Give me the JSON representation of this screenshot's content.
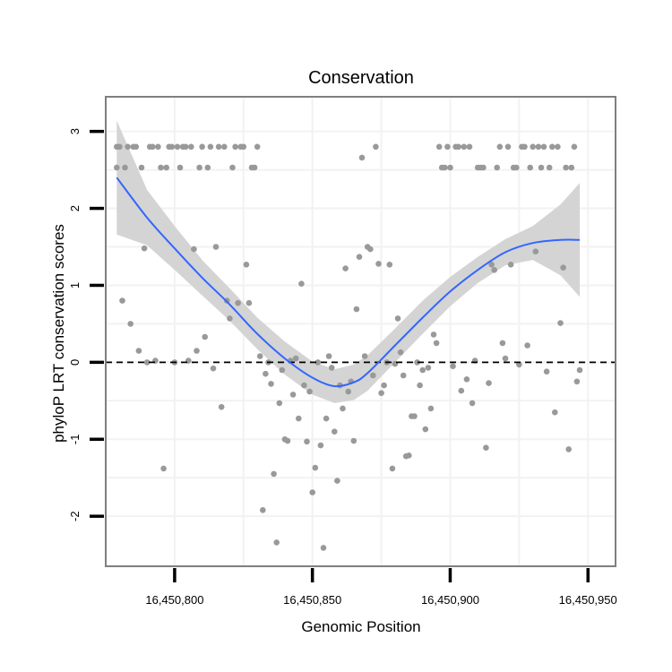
{
  "chart_data": {
    "type": "scatter",
    "title": "Conservation",
    "xlabel": "Genomic Position",
    "ylabel": "phyloP LRT conservation scores",
    "xlim": [
      16450775,
      16450960
    ],
    "ylim": [
      -2.65,
      3.45
    ],
    "xticks": [
      16450800,
      16450850,
      16450900,
      16450950
    ],
    "xtick_labels": [
      "16,450,800",
      "16,450,850",
      "16,450,900",
      "16,450,950"
    ],
    "yticks": [
      -2,
      -1,
      0,
      1,
      2,
      3
    ],
    "ytick_labels": [
      "-2",
      "-1",
      "0",
      "1",
      "2",
      "3"
    ],
    "reference_line": {
      "y": 0,
      "style": "dashed"
    },
    "grid": true,
    "colors": {
      "points": "#999999",
      "smooth_line": "#3366ff",
      "confidence_band": "#d4d4d4",
      "panel_border": "#7f7f7f",
      "grid": "#f2f2f2"
    },
    "points": [
      [
        16450779,
        2.53
      ],
      [
        16450779,
        2.8
      ],
      [
        16450780,
        2.8
      ],
      [
        16450781,
        0.8
      ],
      [
        16450782,
        2.53
      ],
      [
        16450783,
        2.8
      ],
      [
        16450784,
        0.5
      ],
      [
        16450785,
        2.8
      ],
      [
        16450786,
        2.8
      ],
      [
        16450787,
        0.15
      ],
      [
        16450788,
        2.53
      ],
      [
        16450789,
        1.48
      ],
      [
        16450790,
        0.0
      ],
      [
        16450791,
        2.8
      ],
      [
        16450792,
        2.8
      ],
      [
        16450793,
        0.02
      ],
      [
        16450794,
        2.8
      ],
      [
        16450795,
        2.53
      ],
      [
        16450796,
        -1.38
      ],
      [
        16450797,
        2.53
      ],
      [
        16450798,
        2.8
      ],
      [
        16450799,
        2.8
      ],
      [
        16450800,
        0.0
      ],
      [
        16450801,
        2.8
      ],
      [
        16450802,
        2.53
      ],
      [
        16450803,
        2.8
      ],
      [
        16450804,
        2.8
      ],
      [
        16450805,
        0.02
      ],
      [
        16450806,
        2.8
      ],
      [
        16450807,
        1.47
      ],
      [
        16450808,
        0.15
      ],
      [
        16450809,
        2.53
      ],
      [
        16450810,
        2.8
      ],
      [
        16450811,
        0.33
      ],
      [
        16450812,
        2.53
      ],
      [
        16450813,
        2.8
      ],
      [
        16450814,
        -0.08
      ],
      [
        16450815,
        1.5
      ],
      [
        16450816,
        2.8
      ],
      [
        16450817,
        -0.58
      ],
      [
        16450818,
        2.8
      ],
      [
        16450819,
        0.8
      ],
      [
        16450820,
        0.57
      ],
      [
        16450821,
        2.53
      ],
      [
        16450822,
        2.8
      ],
      [
        16450823,
        0.77
      ],
      [
        16450824,
        2.8
      ],
      [
        16450825,
        2.8
      ],
      [
        16450826,
        1.27
      ],
      [
        16450827,
        0.77
      ],
      [
        16450828,
        2.53
      ],
      [
        16450829,
        2.53
      ],
      [
        16450830,
        2.8
      ],
      [
        16450831,
        0.08
      ],
      [
        16450832,
        -1.92
      ],
      [
        16450833,
        -0.15
      ],
      [
        16450834,
        0.0
      ],
      [
        16450835,
        -0.28
      ],
      [
        16450836,
        -1.45
      ],
      [
        16450837,
        -2.34
      ],
      [
        16450838,
        -0.53
      ],
      [
        16450839,
        -0.1
      ],
      [
        16450840,
        -1.0
      ],
      [
        16450841,
        -1.02
      ],
      [
        16450842,
        0.02
      ],
      [
        16450843,
        -0.42
      ],
      [
        16450844,
        0.05
      ],
      [
        16450845,
        -0.73
      ],
      [
        16450846,
        1.02
      ],
      [
        16450847,
        -0.3
      ],
      [
        16450848,
        -1.03
      ],
      [
        16450849,
        -0.38
      ],
      [
        16450850,
        -1.69
      ],
      [
        16450851,
        -1.37
      ],
      [
        16450852,
        0.0
      ],
      [
        16450853,
        -1.08
      ],
      [
        16450854,
        -2.41
      ],
      [
        16450855,
        -0.73
      ],
      [
        16450856,
        0.08
      ],
      [
        16450857,
        -0.07
      ],
      [
        16450858,
        -0.9
      ],
      [
        16450859,
        -1.54
      ],
      [
        16450860,
        -0.3
      ],
      [
        16450861,
        -0.6
      ],
      [
        16450862,
        1.22
      ],
      [
        16450863,
        -0.38
      ],
      [
        16450864,
        -0.25
      ],
      [
        16450865,
        -1.02
      ],
      [
        16450866,
        0.69
      ],
      [
        16450867,
        1.37
      ],
      [
        16450868,
        2.66
      ],
      [
        16450869,
        0.08
      ],
      [
        16450870,
        1.5
      ],
      [
        16450871,
        1.47
      ],
      [
        16450872,
        -0.17
      ],
      [
        16450873,
        2.8
      ],
      [
        16450874,
        1.28
      ],
      [
        16450875,
        -0.4
      ],
      [
        16450876,
        -0.3
      ],
      [
        16450877,
        0.0
      ],
      [
        16450878,
        1.27
      ],
      [
        16450879,
        -1.38
      ],
      [
        16450880,
        -0.02
      ],
      [
        16450881,
        0.57
      ],
      [
        16450882,
        0.13
      ],
      [
        16450883,
        -0.17
      ],
      [
        16450884,
        -1.22
      ],
      [
        16450885,
        -1.21
      ],
      [
        16450886,
        -0.7
      ],
      [
        16450887,
        -0.7
      ],
      [
        16450888,
        0.0
      ],
      [
        16450889,
        -0.3
      ],
      [
        16450890,
        -0.1
      ],
      [
        16450891,
        -0.87
      ],
      [
        16450892,
        -0.07
      ],
      [
        16450893,
        -0.6
      ],
      [
        16450894,
        0.36
      ],
      [
        16450895,
        0.25
      ],
      [
        16450896,
        2.8
      ],
      [
        16450897,
        2.53
      ],
      [
        16450898,
        2.53
      ],
      [
        16450899,
        2.8
      ],
      [
        16450900,
        2.53
      ],
      [
        16450901,
        -0.05
      ],
      [
        16450902,
        2.8
      ],
      [
        16450903,
        2.8
      ],
      [
        16450904,
        -0.37
      ],
      [
        16450905,
        2.8
      ],
      [
        16450906,
        -0.22
      ],
      [
        16450907,
        2.8
      ],
      [
        16450908,
        -0.53
      ],
      [
        16450909,
        0.02
      ],
      [
        16450910,
        2.53
      ],
      [
        16450911,
        2.53
      ],
      [
        16450912,
        2.53
      ],
      [
        16450913,
        -1.11
      ],
      [
        16450914,
        -0.27
      ],
      [
        16450915,
        1.27
      ],
      [
        16450916,
        1.2
      ],
      [
        16450917,
        2.53
      ],
      [
        16450918,
        2.8
      ],
      [
        16450919,
        0.25
      ],
      [
        16450920,
        0.05
      ],
      [
        16450921,
        2.8
      ],
      [
        16450922,
        1.27
      ],
      [
        16450923,
        2.53
      ],
      [
        16450924,
        2.53
      ],
      [
        16450925,
        -0.03
      ],
      [
        16450926,
        2.8
      ],
      [
        16450927,
        2.8
      ],
      [
        16450928,
        0.22
      ],
      [
        16450929,
        2.53
      ],
      [
        16450930,
        2.8
      ],
      [
        16450931,
        1.44
      ],
      [
        16450932,
        2.8
      ],
      [
        16450933,
        2.53
      ],
      [
        16450934,
        2.8
      ],
      [
        16450935,
        -0.12
      ],
      [
        16450936,
        2.53
      ],
      [
        16450937,
        2.8
      ],
      [
        16450938,
        -0.65
      ],
      [
        16450939,
        2.8
      ],
      [
        16450940,
        0.51
      ],
      [
        16450941,
        1.23
      ],
      [
        16450942,
        2.53
      ],
      [
        16450943,
        -1.13
      ],
      [
        16450944,
        2.53
      ],
      [
        16450945,
        2.8
      ],
      [
        16450946,
        -0.25
      ],
      [
        16450947,
        -0.1
      ]
    ],
    "smooth": {
      "x": [
        16450779,
        16450790,
        16450800,
        16450810,
        16450820,
        16450830,
        16450840,
        16450850,
        16450858,
        16450865,
        16450870,
        16450880,
        16450890,
        16450900,
        16450910,
        16450920,
        16450930,
        16450940,
        16450947
      ],
      "y": [
        2.4,
        1.88,
        1.48,
        1.1,
        0.75,
        0.37,
        0.05,
        -0.2,
        -0.31,
        -0.26,
        -0.14,
        0.22,
        0.58,
        0.92,
        1.2,
        1.43,
        1.55,
        1.59,
        1.59
      ],
      "lower": [
        1.66,
        1.52,
        1.2,
        0.87,
        0.54,
        0.17,
        -0.16,
        -0.42,
        -0.53,
        -0.49,
        -0.37,
        0.0,
        0.37,
        0.73,
        1.03,
        1.26,
        1.33,
        1.13,
        0.85
      ],
      "upper": [
        3.14,
        2.24,
        1.77,
        1.33,
        0.96,
        0.58,
        0.27,
        0.01,
        -0.09,
        -0.03,
        0.09,
        0.44,
        0.8,
        1.11,
        1.37,
        1.6,
        1.77,
        2.05,
        2.33
      ]
    }
  }
}
